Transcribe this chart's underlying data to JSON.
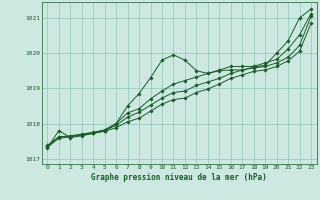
{
  "title": "Graphe pression niveau de la mer (hPa)",
  "bg_color": "#cce8e0",
  "line_color": "#1a5c2a",
  "grid_color": "#7fbfb0",
  "text_color": "#1a5c2a",
  "xlim": [
    -0.5,
    23.5
  ],
  "ylim": [
    1016.85,
    1021.45
  ],
  "yticks": [
    1017,
    1018,
    1019,
    1020,
    1021
  ],
  "xticks": [
    0,
    1,
    2,
    3,
    4,
    5,
    6,
    7,
    8,
    9,
    10,
    11,
    12,
    13,
    14,
    15,
    16,
    17,
    18,
    19,
    20,
    21,
    22,
    23
  ],
  "series": [
    [
      1017.3,
      1017.8,
      1017.6,
      1017.65,
      1017.72,
      1017.8,
      1018.0,
      1018.5,
      1018.85,
      1019.3,
      1019.8,
      1019.95,
      1019.8,
      1019.5,
      1019.42,
      1019.5,
      1019.52,
      1019.52,
      1019.6,
      1019.65,
      1020.0,
      1020.35,
      1021.0,
      1021.25
    ],
    [
      1017.32,
      1017.58,
      1017.62,
      1017.68,
      1017.72,
      1017.78,
      1017.88,
      1018.05,
      1018.15,
      1018.35,
      1018.55,
      1018.68,
      1018.72,
      1018.88,
      1018.98,
      1019.12,
      1019.28,
      1019.38,
      1019.48,
      1019.52,
      1019.62,
      1019.78,
      1020.05,
      1020.85
    ],
    [
      1017.35,
      1017.62,
      1017.63,
      1017.68,
      1017.73,
      1017.8,
      1017.95,
      1018.18,
      1018.32,
      1018.52,
      1018.72,
      1018.88,
      1018.92,
      1019.08,
      1019.18,
      1019.28,
      1019.42,
      1019.52,
      1019.58,
      1019.62,
      1019.72,
      1019.88,
      1020.22,
      1021.05
    ],
    [
      1017.38,
      1017.62,
      1017.65,
      1017.7,
      1017.75,
      1017.82,
      1018.0,
      1018.3,
      1018.42,
      1018.7,
      1018.92,
      1019.12,
      1019.22,
      1019.32,
      1019.42,
      1019.52,
      1019.62,
      1019.62,
      1019.62,
      1019.72,
      1019.82,
      1020.12,
      1020.52,
      1021.12
    ]
  ]
}
